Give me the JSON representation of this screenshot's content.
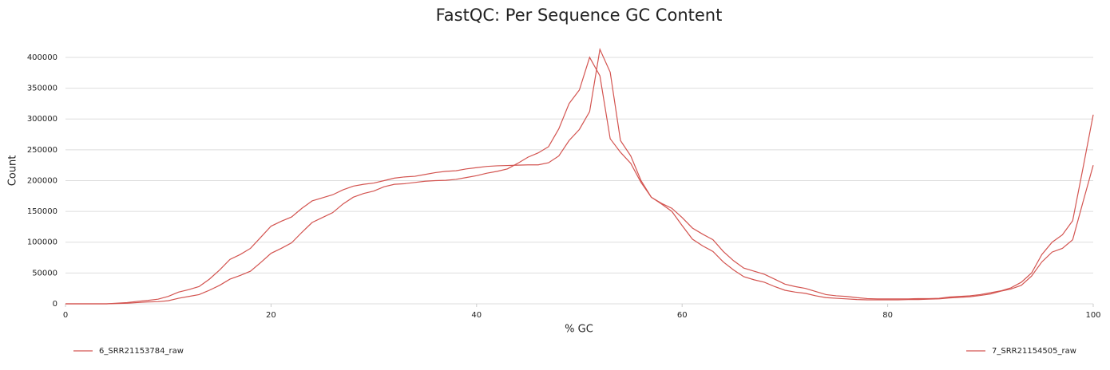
{
  "chart_data": {
    "type": "line",
    "title": "FastQC: Per Sequence GC Content",
    "x_label": "% GC",
    "y_label": "Count",
    "x": [
      0,
      1,
      2,
      3,
      4,
      5,
      6,
      7,
      8,
      9,
      10,
      11,
      12,
      13,
      14,
      15,
      16,
      17,
      18,
      19,
      20,
      21,
      22,
      23,
      24,
      25,
      26,
      27,
      28,
      29,
      30,
      31,
      32,
      33,
      34,
      35,
      36,
      37,
      38,
      39,
      40,
      41,
      42,
      43,
      44,
      45,
      46,
      47,
      48,
      49,
      50,
      51,
      52,
      53,
      54,
      55,
      56,
      57,
      58,
      59,
      60,
      61,
      62,
      63,
      64,
      65,
      66,
      67,
      68,
      69,
      70,
      71,
      72,
      73,
      74,
      75,
      76,
      77,
      78,
      79,
      80,
      81,
      82,
      83,
      84,
      85,
      86,
      87,
      88,
      89,
      90,
      91,
      92,
      93,
      94,
      95,
      96,
      97,
      98,
      99,
      100
    ],
    "series": [
      {
        "name": "6_SRR21153784_raw",
        "color": "#d35450",
        "values": [
          0,
          0,
          0,
          0,
          0,
          1000,
          2000,
          4000,
          5500,
          7500,
          12000,
          19000,
          23000,
          28000,
          40000,
          55000,
          72000,
          80000,
          90000,
          108000,
          126000,
          134000,
          141000,
          155000,
          167000,
          172000,
          177000,
          185000,
          191000,
          194000,
          196000,
          200000,
          204000,
          206000,
          207000,
          210000,
          213000,
          215000,
          216000,
          219000,
          221000,
          223000,
          224000,
          224500,
          225000,
          225500,
          225500,
          229000,
          240000,
          265000,
          283000,
          312000,
          413000,
          376000,
          265000,
          240000,
          200000,
          173000,
          163000,
          155000,
          140000,
          123000,
          113000,
          104000,
          85000,
          70000,
          58000,
          53000,
          48000,
          40000,
          32000,
          28000,
          25000,
          20000,
          15000,
          13000,
          12000,
          10000,
          8500,
          8000,
          8000,
          8000,
          8000,
          8500,
          8500,
          9000,
          11000,
          12000,
          13000,
          15000,
          18000,
          21000,
          26000,
          35000,
          50000,
          80000,
          100000,
          112000,
          135000,
          220000,
          307000
        ]
      },
      {
        "name": "7_SRR21154505_raw",
        "color": "#d35450",
        "values": [
          0,
          0,
          0,
          0,
          0,
          500,
          1000,
          2000,
          3000,
          3500,
          5000,
          9000,
          12000,
          15000,
          22000,
          30000,
          40000,
          46000,
          53000,
          67000,
          82000,
          90000,
          99000,
          116000,
          132000,
          140000,
          148000,
          162000,
          173000,
          179000,
          183000,
          190000,
          194000,
          195000,
          197000,
          199000,
          200000,
          200500,
          202000,
          205000,
          208000,
          212000,
          215000,
          219000,
          228000,
          238000,
          245000,
          255000,
          284000,
          325000,
          347000,
          400000,
          370000,
          268000,
          246000,
          228000,
          197000,
          173000,
          162000,
          150000,
          127000,
          105000,
          94000,
          85000,
          68000,
          55000,
          44000,
          39000,
          35000,
          28000,
          22000,
          19000,
          17000,
          13000,
          10000,
          9000,
          8000,
          7000,
          6500,
          6500,
          6500,
          6500,
          7000,
          7000,
          7500,
          8000,
          9500,
          10500,
          11500,
          13500,
          16000,
          20500,
          24000,
          30000,
          45000,
          68000,
          84000,
          90000,
          104000,
          165000,
          225000
        ]
      }
    ],
    "xlim": [
      0,
      100
    ],
    "xticks": [
      0,
      20,
      40,
      60,
      80,
      100
    ],
    "ylim": [
      0,
      420000
    ],
    "yticks": [
      0,
      50000,
      100000,
      150000,
      200000,
      250000,
      300000,
      350000,
      400000
    ],
    "grid": true,
    "legend": "bottom"
  }
}
